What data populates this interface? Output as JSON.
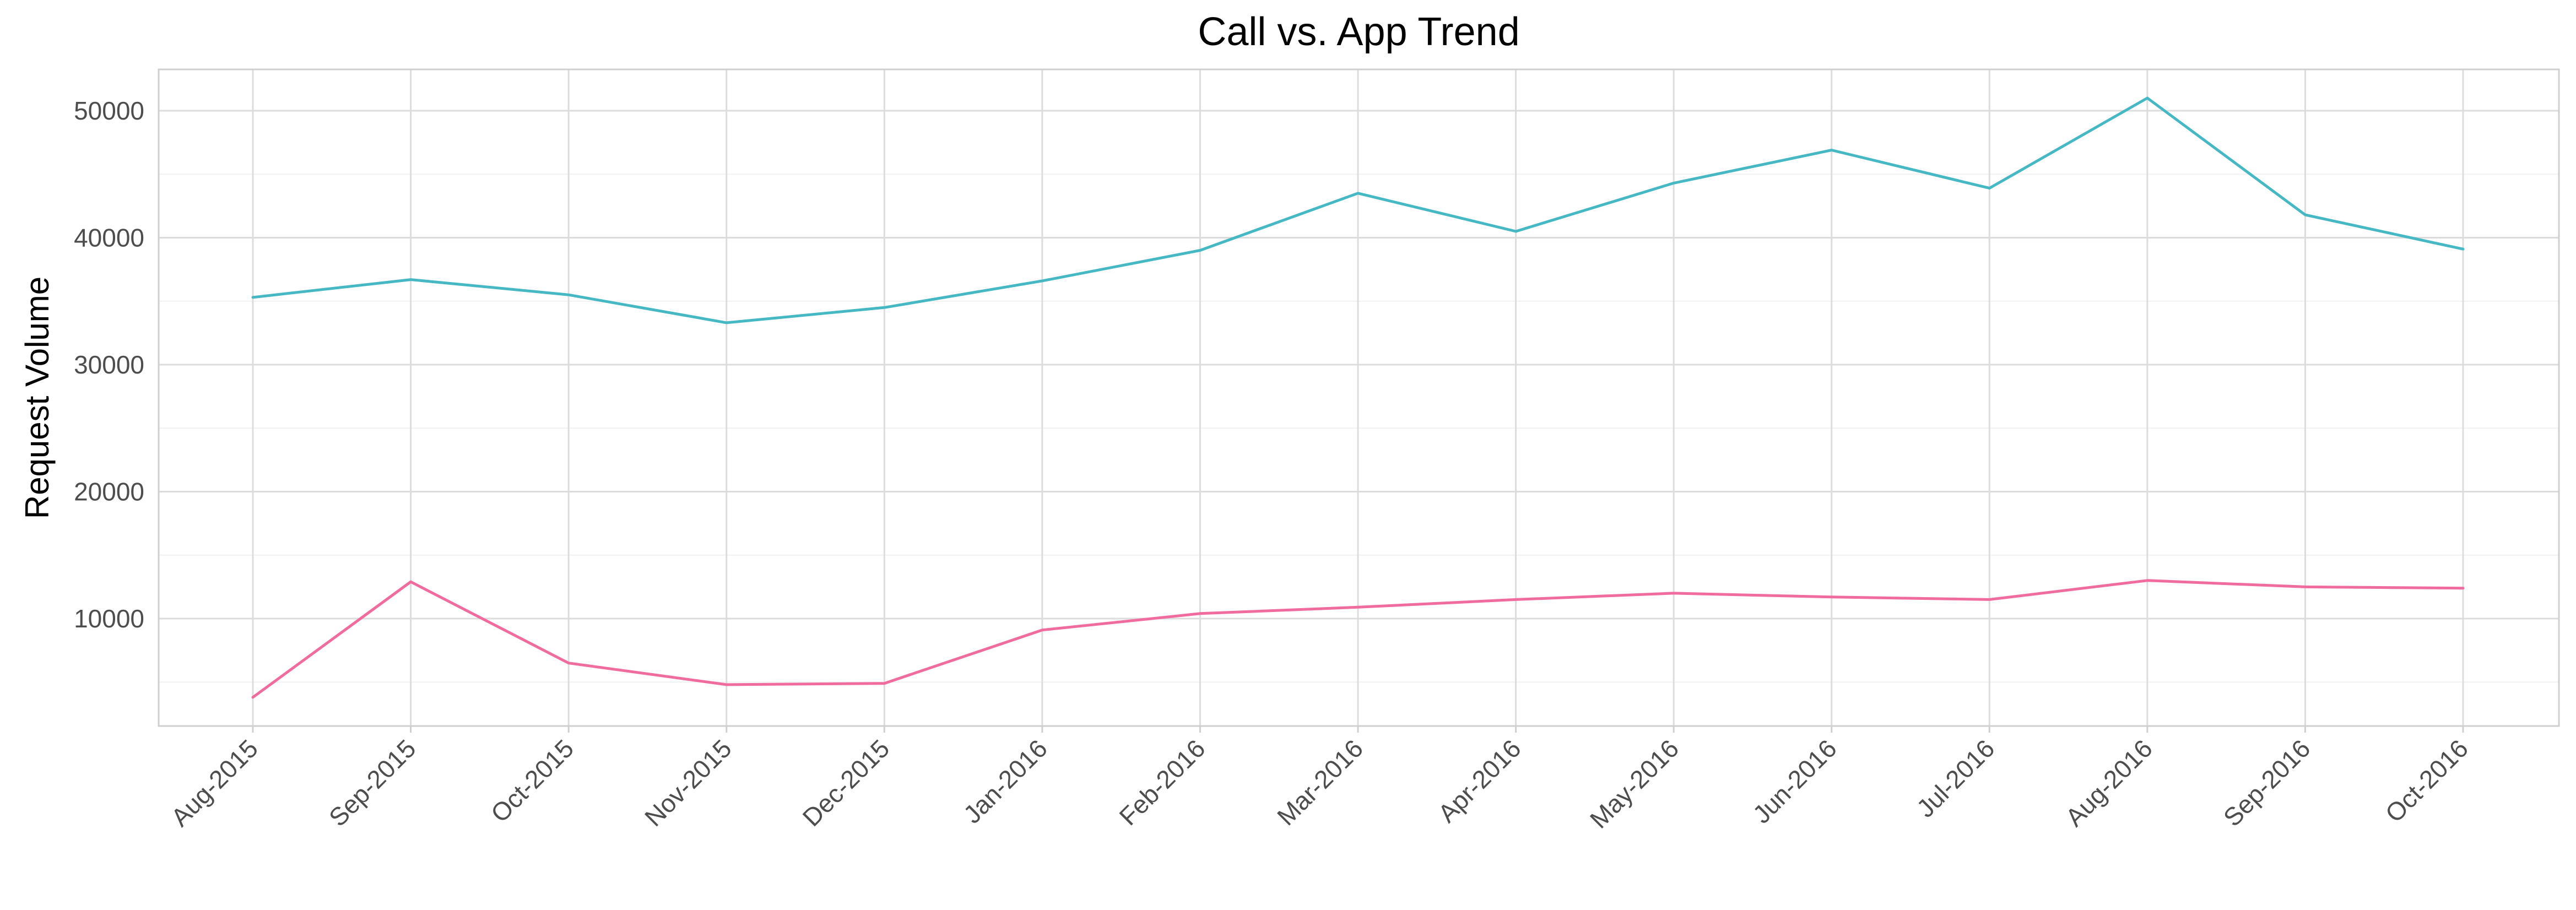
{
  "chart_data": {
    "type": "line",
    "title": "Call vs. App Trend",
    "xlabel": "",
    "ylabel": "Request Volume",
    "categories": [
      "Aug-2015",
      "Sep-2015",
      "Oct-2015",
      "Nov-2015",
      "Dec-2015",
      "Jan-2016",
      "Feb-2016",
      "Mar-2016",
      "Apr-2016",
      "May-2016",
      "Jun-2016",
      "Jul-2016",
      "Aug-2016",
      "Sep-2016",
      "Oct-2016"
    ],
    "yticks": [
      10000,
      20000,
      30000,
      40000,
      50000
    ],
    "ylim": [
      0,
      53000
    ],
    "grid": true,
    "legend": "none",
    "series": [
      {
        "color": "#45b8c4",
        "values": [
          35300,
          36700,
          35500,
          33300,
          34500,
          36600,
          39000,
          43500,
          40500,
          44300,
          46900,
          43900,
          51000,
          41800,
          39100
        ]
      },
      {
        "color": "#f06b9e",
        "values": [
          3800,
          12900,
          6500,
          4800,
          4900,
          9100,
          10400,
          10900,
          11500,
          12000,
          11700,
          11500,
          13000,
          12500,
          12400
        ]
      }
    ]
  }
}
